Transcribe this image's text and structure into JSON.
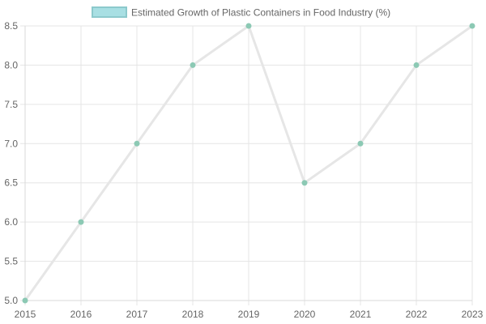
{
  "chart_data": {
    "type": "line",
    "title": "",
    "xlabel": "",
    "ylabel": "",
    "categories": [
      "2015",
      "2016",
      "2017",
      "2018",
      "2019",
      "2020",
      "2021",
      "2022",
      "2023"
    ],
    "series": [
      {
        "name": "Estimated Growth of Plastic Containers in Food Industry (%)",
        "values": [
          5.0,
          6.0,
          7.0,
          8.0,
          8.5,
          6.5,
          7.0,
          8.0,
          8.5
        ],
        "line_color": "#e6e6e6",
        "point_color": "#8cc9b4",
        "legend_fill": "#a8dfe3",
        "legend_stroke": "#8cc9cc"
      }
    ],
    "ylim": [
      5.0,
      8.5
    ],
    "yticks": [
      "5.0",
      "5.5",
      "6.0",
      "6.5",
      "7.0",
      "7.5",
      "8.0",
      "8.5"
    ],
    "grid": true,
    "legend_position": "top-center"
  }
}
